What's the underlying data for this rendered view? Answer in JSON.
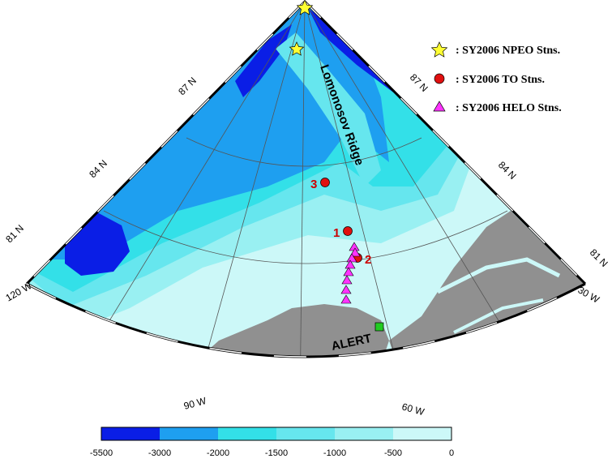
{
  "colors": {
    "depth_5500_3000": "#0a1ee6",
    "depth_3000_2000": "#1e9ff0",
    "depth_2000_1500": "#33e0e8",
    "depth_1500_1000": "#66e6ee",
    "depth_1000_500": "#99f0f2",
    "depth_500_0": "#ccf8f8",
    "land": "#909090",
    "npeo_marker": "#ffff33",
    "to_marker": "#e01010",
    "helo_marker": "#ff33ff",
    "alert_marker": "#22cc22"
  },
  "lat_labels": {
    "lat81_left": "81 N",
    "lat84_left": "84 N",
    "lat87_left": "87 N",
    "lat81_right": "81 N",
    "lat84_right": "84 N",
    "lat87_right": "87 N"
  },
  "lon_labels": {
    "lon120": "120 W",
    "lon90": "90 W",
    "lon60": "60 W",
    "lon30": "30 W"
  },
  "features": {
    "ridge_name": "Lomonosov Ridge",
    "alert_name": "ALERT"
  },
  "stations": {
    "to": [
      "1",
      "2",
      "3"
    ]
  },
  "legend": {
    "npeo": ": SY2006 NPEO Stns.",
    "to": ": SY2006 TO Stns.",
    "helo": ": SY2006 HELO Stns."
  },
  "colorbar": {
    "ticks": [
      "-5500",
      "-3000",
      "-2000",
      "-1500",
      "-1000",
      "-500",
      "0"
    ]
  }
}
